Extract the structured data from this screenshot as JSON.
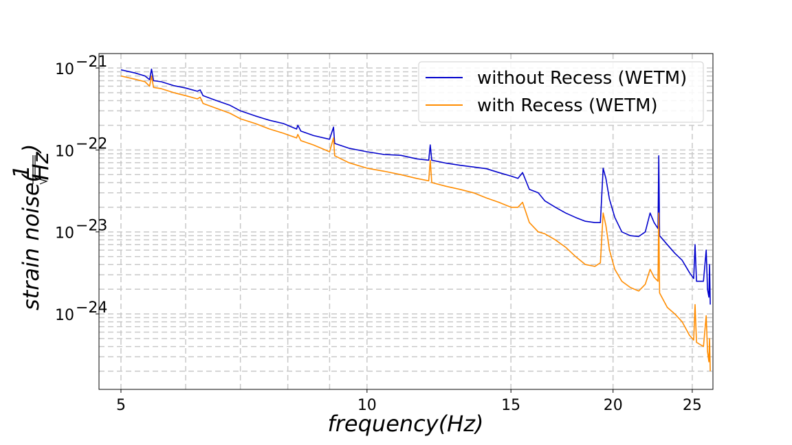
{
  "chart_data": {
    "type": "line",
    "title": "",
    "xlabel": "frequency(Hz)",
    "ylabel_main": "strain noise(",
    "ylabel_frac_num": "1",
    "ylabel_frac_den": "Hz",
    "ylabel_close": ")",
    "x_scale": "log",
    "y_scale": "log",
    "xlim": [
      4.7,
      26.5
    ],
    "ylim": [
      1.2e-25,
      1.5e-21
    ],
    "x_ticks": [
      {
        "value": 5,
        "label": "5"
      },
      {
        "value": 10,
        "label": "10"
      },
      {
        "value": 15,
        "label": "15"
      },
      {
        "value": 20,
        "label": "20"
      },
      {
        "value": 25,
        "label": "25"
      }
    ],
    "y_ticks": [
      {
        "value": 1e-21,
        "base": "10",
        "exp": "−21"
      },
      {
        "value": 1e-22,
        "base": "10",
        "exp": "−22"
      },
      {
        "value": 1e-23,
        "base": "10",
        "exp": "−23"
      },
      {
        "value": 1e-24,
        "base": "10",
        "exp": "−24"
      }
    ],
    "grid": true,
    "legend_position": "top-right",
    "series": [
      {
        "name": "without Recess (WETM)",
        "color": "#0000cc",
        "points": [
          [
            5.0,
            9.5e-22
          ],
          [
            5.2,
            8.7e-22
          ],
          [
            5.35,
            8e-22
          ],
          [
            5.42,
            7.2e-22
          ],
          [
            5.45,
            9.7e-22
          ],
          [
            5.48,
            7e-22
          ],
          [
            5.6,
            6.8e-22
          ],
          [
            5.8,
            6.1e-22
          ],
          [
            6.0,
            5.7e-22
          ],
          [
            6.2,
            5.2e-22
          ],
          [
            6.25,
            5.4e-22
          ],
          [
            6.3,
            4.6e-22
          ],
          [
            6.5,
            4.1e-22
          ],
          [
            6.8,
            3.5e-22
          ],
          [
            7.0,
            3e-22
          ],
          [
            7.3,
            2.6e-22
          ],
          [
            7.6,
            2.3e-22
          ],
          [
            7.9,
            2.1e-22
          ],
          [
            8.2,
            1.8e-22
          ],
          [
            8.23,
            2e-22
          ],
          [
            8.3,
            1.7e-22
          ],
          [
            8.6,
            1.5e-22
          ],
          [
            9.0,
            1.35e-22
          ],
          [
            9.1,
            1.9e-22
          ],
          [
            9.13,
            1.2e-22
          ],
          [
            9.5,
            1.05e-22
          ],
          [
            10.0,
            9.5e-23
          ],
          [
            10.5,
            8.8e-23
          ],
          [
            11.0,
            8.6e-23
          ],
          [
            11.5,
            7.8e-23
          ],
          [
            11.9,
            7.5e-23
          ],
          [
            11.95,
            1.15e-22
          ],
          [
            12.0,
            7.5e-23
          ],
          [
            12.5,
            6.9e-23
          ],
          [
            13.0,
            6.5e-23
          ],
          [
            13.5,
            6.2e-23
          ],
          [
            14.0,
            5.9e-23
          ],
          [
            14.5,
            5.3e-23
          ],
          [
            15.0,
            4.8e-23
          ],
          [
            15.3,
            4.5e-23
          ],
          [
            15.5,
            5.3e-23
          ],
          [
            15.8,
            3.3e-23
          ],
          [
            16.2,
            3e-23
          ],
          [
            16.5,
            2.4e-23
          ],
          [
            17.0,
            2e-23
          ],
          [
            17.5,
            1.7e-23
          ],
          [
            18.0,
            1.5e-23
          ],
          [
            18.5,
            1.35e-23
          ],
          [
            19.0,
            1.3e-23
          ],
          [
            19.3,
            1.3e-23
          ],
          [
            19.45,
            6e-23
          ],
          [
            19.6,
            4.5e-23
          ],
          [
            19.8,
            2.5e-23
          ],
          [
            20.1,
            1.5e-23
          ],
          [
            20.5,
            1e-23
          ],
          [
            21.0,
            9e-24
          ],
          [
            21.5,
            8.8e-24
          ],
          [
            21.9,
            1e-23
          ],
          [
            22.2,
            1.7e-23
          ],
          [
            22.45,
            1.3e-23
          ],
          [
            22.7,
            1.1e-23
          ],
          [
            22.75,
            8.5e-23
          ],
          [
            22.8,
            9e-24
          ],
          [
            23.3,
            7e-24
          ],
          [
            23.8,
            5.5e-24
          ],
          [
            24.3,
            4.5e-24
          ],
          [
            24.8,
            3.2e-24
          ],
          [
            25.1,
            2.7e-24
          ],
          [
            25.2,
            7e-24
          ],
          [
            25.3,
            2.5e-24
          ],
          [
            25.8,
            2.5e-24
          ],
          [
            26.0,
            6e-24
          ],
          [
            26.1,
            2e-24
          ],
          [
            26.2,
            1.6e-24
          ],
          [
            26.25,
            4e-24
          ],
          [
            26.3,
            1.3e-24
          ]
        ]
      },
      {
        "name": "with Recess (WETM)",
        "color": "#ff8c00",
        "points": [
          [
            5.0,
            8e-22
          ],
          [
            5.2,
            7.3e-22
          ],
          [
            5.35,
            6.8e-22
          ],
          [
            5.42,
            6e-22
          ],
          [
            5.45,
            8e-22
          ],
          [
            5.48,
            5.8e-22
          ],
          [
            5.6,
            5.6e-22
          ],
          [
            5.8,
            5e-22
          ],
          [
            6.0,
            4.6e-22
          ],
          [
            6.2,
            4.2e-22
          ],
          [
            6.25,
            4.4e-22
          ],
          [
            6.3,
            3.7e-22
          ],
          [
            6.5,
            3.3e-22
          ],
          [
            6.8,
            2.8e-22
          ],
          [
            7.0,
            2.4e-22
          ],
          [
            7.3,
            2.1e-22
          ],
          [
            7.6,
            1.8e-22
          ],
          [
            7.9,
            1.6e-22
          ],
          [
            8.2,
            1.4e-22
          ],
          [
            8.23,
            1.55e-22
          ],
          [
            8.3,
            1.3e-22
          ],
          [
            8.6,
            1.15e-22
          ],
          [
            9.0,
            9.5e-23
          ],
          [
            9.1,
            1.4e-22
          ],
          [
            9.13,
            8.5e-23
          ],
          [
            9.5,
            7e-23
          ],
          [
            10.0,
            6e-23
          ],
          [
            10.5,
            5.5e-23
          ],
          [
            11.0,
            5e-23
          ],
          [
            11.5,
            4.5e-23
          ],
          [
            11.9,
            4.2e-23
          ],
          [
            11.95,
            7.5e-23
          ],
          [
            12.0,
            4e-23
          ],
          [
            12.5,
            3.6e-23
          ],
          [
            13.0,
            3.3e-23
          ],
          [
            13.5,
            3e-23
          ],
          [
            14.0,
            2.6e-23
          ],
          [
            14.5,
            2.3e-23
          ],
          [
            15.0,
            2e-23
          ],
          [
            15.3,
            2e-23
          ],
          [
            15.5,
            2.3e-23
          ],
          [
            15.8,
            1.3e-23
          ],
          [
            16.2,
            1e-23
          ],
          [
            16.5,
            9.5e-24
          ],
          [
            17.0,
            8e-24
          ],
          [
            17.5,
            6.5e-24
          ],
          [
            18.0,
            5e-24
          ],
          [
            18.5,
            4e-24
          ],
          [
            19.0,
            3.8e-24
          ],
          [
            19.3,
            4.2e-24
          ],
          [
            19.45,
            1.7e-23
          ],
          [
            19.6,
            1.2e-23
          ],
          [
            19.8,
            6e-24
          ],
          [
            20.1,
            3.5e-24
          ],
          [
            20.5,
            2.5e-24
          ],
          [
            21.0,
            2.1e-24
          ],
          [
            21.5,
            1.9e-24
          ],
          [
            21.9,
            2.3e-24
          ],
          [
            22.2,
            3.5e-24
          ],
          [
            22.45,
            2.8e-24
          ],
          [
            22.7,
            2.5e-24
          ],
          [
            22.75,
            1.7e-23
          ],
          [
            22.8,
            1.8e-24
          ],
          [
            23.3,
            1.2e-24
          ],
          [
            23.8,
            1e-24
          ],
          [
            24.3,
            8e-25
          ],
          [
            24.8,
            5.5e-25
          ],
          [
            25.1,
            4.8e-25
          ],
          [
            25.2,
            1.3e-24
          ],
          [
            25.3,
            4.5e-25
          ],
          [
            25.8,
            4e-25
          ],
          [
            26.0,
            9.5e-25
          ],
          [
            26.1,
            3.5e-25
          ],
          [
            26.2,
            2.6e-25
          ],
          [
            26.25,
            5e-25
          ],
          [
            26.3,
            2e-25
          ]
        ]
      }
    ]
  }
}
